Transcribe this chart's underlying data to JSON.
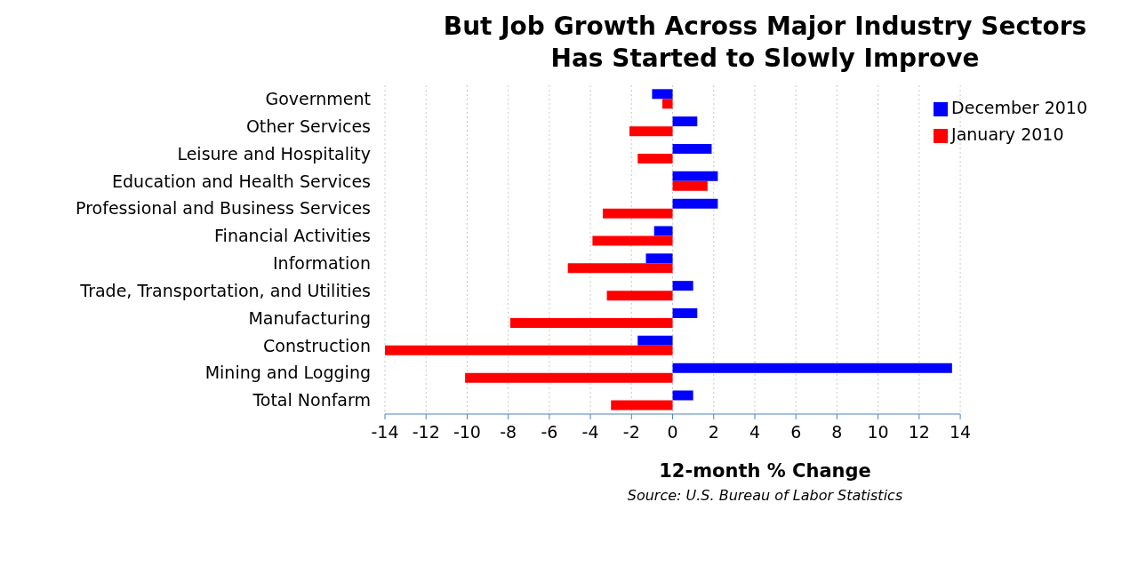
{
  "chart_data": {
    "type": "bar",
    "orientation": "horizontal",
    "title": "But Job Growth Across Major Industry Sectors\nHas Started to Slowly Improve",
    "xlabel": "12-month % Change",
    "annotations": [
      "Source:  U.S. Bureau of  Labor Statistics"
    ],
    "categories": [
      "Government",
      "Other Services",
      "Leisure and Hospitality",
      "Education and Health Services",
      "Professional and Business Services",
      "Financial Activities",
      "Information",
      "Trade, Transportation, and Utilities",
      "Manufacturing",
      "Construction",
      "Mining and Logging",
      "Total Nonfarm"
    ],
    "series": [
      {
        "name": "December 2010",
        "color": "#0000ff",
        "values": [
          -1.0,
          1.2,
          1.9,
          2.2,
          2.2,
          -0.9,
          -1.3,
          1.0,
          1.2,
          -1.7,
          13.6,
          1.0
        ]
      },
      {
        "name": "January 2010",
        "color": "#ff0000",
        "values": [
          -0.5,
          -2.1,
          -1.7,
          1.7,
          -3.4,
          -3.9,
          -5.1,
          -3.2,
          -7.9,
          -14.0,
          -10.1,
          -3.0
        ]
      }
    ],
    "xlim": [
      -14,
      14
    ],
    "xticks": [
      -14,
      -12,
      -10,
      -8,
      -6,
      -4,
      -2,
      0,
      2,
      4,
      6,
      8,
      10,
      12,
      14
    ],
    "grid": "x",
    "legend": "top right"
  }
}
